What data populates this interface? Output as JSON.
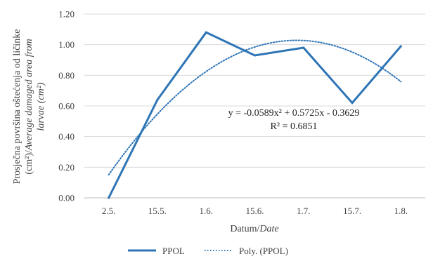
{
  "chart_data": {
    "type": "line",
    "categories": [
      "2.5.",
      "15.5.",
      "1.6.",
      "15.6.",
      "1.7.",
      "15.7.",
      "1.8."
    ],
    "series": [
      {
        "name": "PPOL",
        "values": [
          0.0,
          0.64,
          1.08,
          0.93,
          0.98,
          0.62,
          0.99
        ],
        "color": "#2e75b6",
        "style": "solid"
      }
    ],
    "trendline": {
      "name": "Poly. (PPOL)",
      "type": "polynomial",
      "order": 2,
      "coefficients": {
        "a": -0.0589,
        "b": 0.5725,
        "c": -0.3629
      },
      "color": "#2e75b6",
      "style": "dotted"
    },
    "annotations": {
      "equation": "y = -0.0589x² + 0.5725x - 0.3629",
      "r_squared": "R² = 0.6851"
    },
    "y_ticks": [
      "0.00",
      "0.20",
      "0.40",
      "0.60",
      "0.80",
      "1.00",
      "1.20"
    ],
    "ylim": [
      0,
      1.2
    ],
    "grid": true,
    "xlabel": {
      "plain": "Datum/",
      "italic": "Date"
    },
    "ylabel": {
      "line1": "Prosječna površina oštećenja od ličinke",
      "line2_plain": "(cm²)/",
      "line2_italic": "Average damaged area from",
      "line3_italic": "larvae (cm²)"
    },
    "legend_position": "bottom"
  }
}
